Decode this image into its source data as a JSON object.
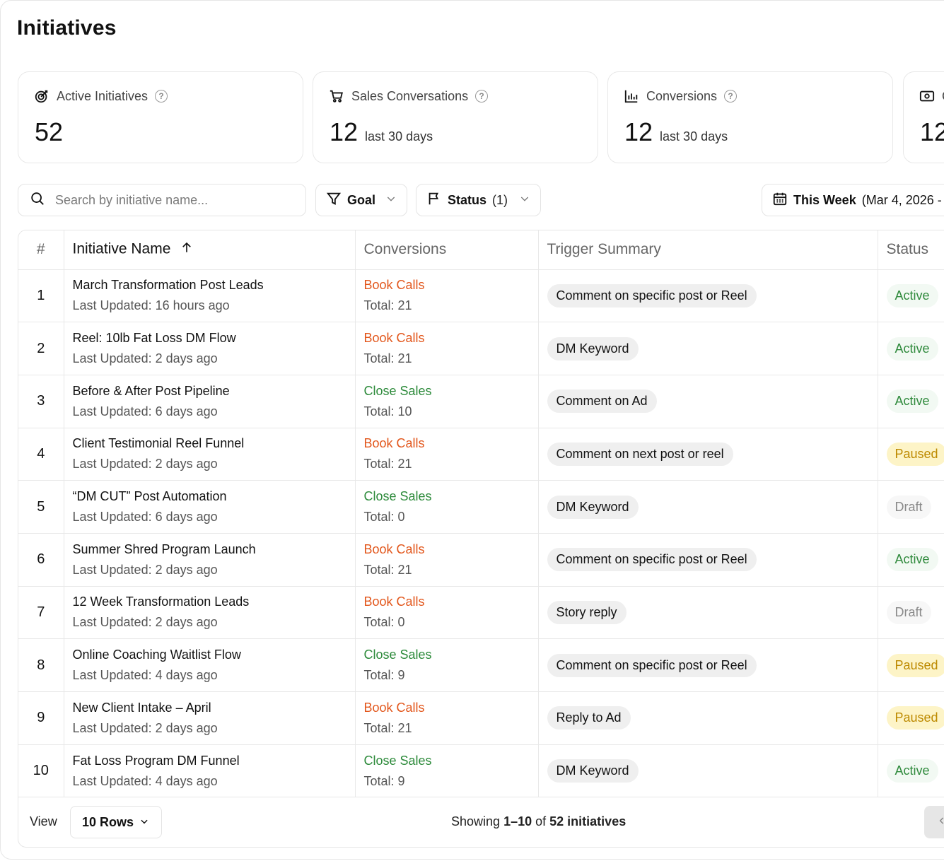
{
  "page": {
    "title": "Initiatives"
  },
  "stats": [
    {
      "icon": "target-icon",
      "label": "Active Initiatives",
      "value": "52",
      "sub": ""
    },
    {
      "icon": "cart-icon",
      "label": "Sales Conversations",
      "value": "12",
      "sub": "last 30 days"
    },
    {
      "icon": "bar-chart-icon",
      "label": "Conversions",
      "value": "12",
      "sub": "last 30 days"
    },
    {
      "icon": "money-icon",
      "label": "C",
      "value": "12",
      "sub": ""
    }
  ],
  "filters": {
    "search_placeholder": "Search by initiative name...",
    "goal_label": "Goal",
    "status_label": "Status",
    "status_count": "(1)",
    "date_label": "This Week",
    "date_range": "(Mar 4, 2026 -"
  },
  "table": {
    "headers": {
      "num": "#",
      "name": "Initiative Name",
      "conversions": "Conversions",
      "trigger": "Trigger Summary",
      "status": "Status"
    },
    "rows": [
      {
        "num": "1",
        "name": "March Transformation Post Leads",
        "updated": "Last Updated: 16 hours ago",
        "goal": "Book Calls",
        "goal_color": "orange",
        "total": "Total: 21",
        "trigger": "Comment on specific post or Reel",
        "status": "Active",
        "status_type": "active"
      },
      {
        "num": "2",
        "name": "Reel: 10lb Fat Loss DM Flow",
        "updated": "Last Updated: 2 days ago",
        "goal": "Book Calls",
        "goal_color": "orange",
        "total": "Total: 21",
        "trigger": "DM Keyword",
        "status": "Active",
        "status_type": "active"
      },
      {
        "num": "3",
        "name": "Before & After Post Pipeline",
        "updated": "Last Updated: 6 days ago",
        "goal": "Close Sales",
        "goal_color": "green",
        "total": "Total: 10",
        "trigger": "Comment on Ad",
        "status": "Active",
        "status_type": "active"
      },
      {
        "num": "4",
        "name": "Client Testimonial Reel Funnel",
        "updated": "Last Updated: 2 days ago",
        "goal": "Book Calls",
        "goal_color": "orange",
        "total": "Total: 21",
        "trigger": "Comment on next post or reel",
        "status": "Paused",
        "status_type": "paused"
      },
      {
        "num": "5",
        "name": "“DM CUT” Post Automation",
        "updated": "Last Updated: 6 days ago",
        "goal": "Close Sales",
        "goal_color": "green",
        "total": "Total: 0",
        "trigger": "DM Keyword",
        "status": "Draft",
        "status_type": "draft"
      },
      {
        "num": "6",
        "name": "Summer Shred Program Launch",
        "updated": "Last Updated: 2 days ago",
        "goal": "Book Calls",
        "goal_color": "orange",
        "total": "Total: 21",
        "trigger": "Comment on specific post or Reel",
        "status": "Active",
        "status_type": "active"
      },
      {
        "num": "7",
        "name": "12 Week Transformation Leads",
        "updated": "Last Updated: 2 days ago",
        "goal": "Book Calls",
        "goal_color": "orange",
        "total": "Total: 0",
        "trigger": "Story reply",
        "status": "Draft",
        "status_type": "draft"
      },
      {
        "num": "8",
        "name": "Online Coaching Waitlist Flow",
        "updated": "Last Updated: 4 days ago",
        "goal": "Close Sales",
        "goal_color": "green",
        "total": "Total: 9",
        "trigger": "Comment on specific post or Reel",
        "status": "Paused",
        "status_type": "paused"
      },
      {
        "num": "9",
        "name": "New Client Intake – April",
        "updated": "Last Updated: 2 days ago",
        "goal": "Book Calls",
        "goal_color": "orange",
        "total": "Total: 21",
        "trigger": "Reply to Ad",
        "status": "Paused",
        "status_type": "paused"
      },
      {
        "num": "10",
        "name": "Fat Loss Program DM Funnel",
        "updated": "Last Updated: 4 days ago",
        "goal": "Close Sales",
        "goal_color": "green",
        "total": "Total: 9",
        "trigger": "DM Keyword",
        "status": "Active",
        "status_type": "active"
      }
    ]
  },
  "footer": {
    "view_label": "View",
    "rows_label": "10 Rows",
    "showing_prefix": "Showing",
    "showing_range": "1–10",
    "showing_of": "of",
    "showing_total": "52 initiatives"
  }
}
